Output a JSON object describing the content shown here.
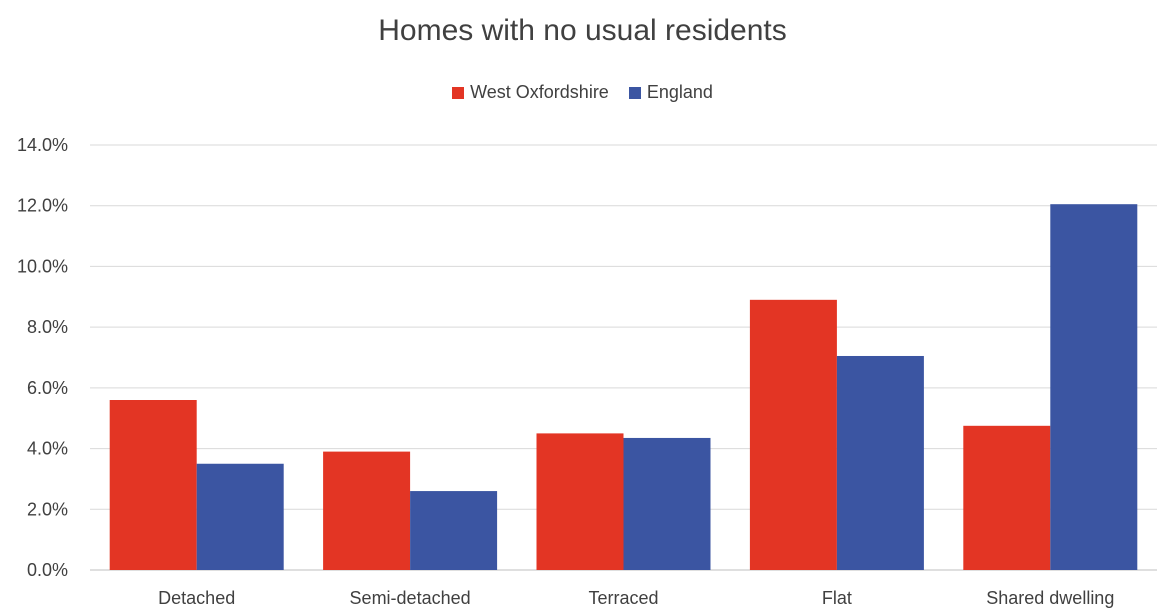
{
  "chart_data": {
    "type": "bar",
    "title": "Homes with no usual residents",
    "categories": [
      "Detached",
      "Semi-detached",
      "Terraced",
      "Flat",
      "Shared dwelling"
    ],
    "series": [
      {
        "name": "West Oxfordshire",
        "color": "#e33524",
        "values": [
          5.6,
          3.9,
          4.5,
          8.9,
          4.75
        ]
      },
      {
        "name": "England",
        "color": "#3b55a2",
        "values": [
          3.5,
          2.6,
          4.35,
          7.05,
          12.05
        ]
      }
    ],
    "yticks": [
      "0.0%",
      "2.0%",
      "4.0%",
      "6.0%",
      "8.0%",
      "10.0%",
      "12.0%",
      "14.0%"
    ],
    "ylim": [
      0,
      14
    ],
    "grid": true,
    "legend_position": "top-center",
    "xlabel": "",
    "ylabel": ""
  }
}
